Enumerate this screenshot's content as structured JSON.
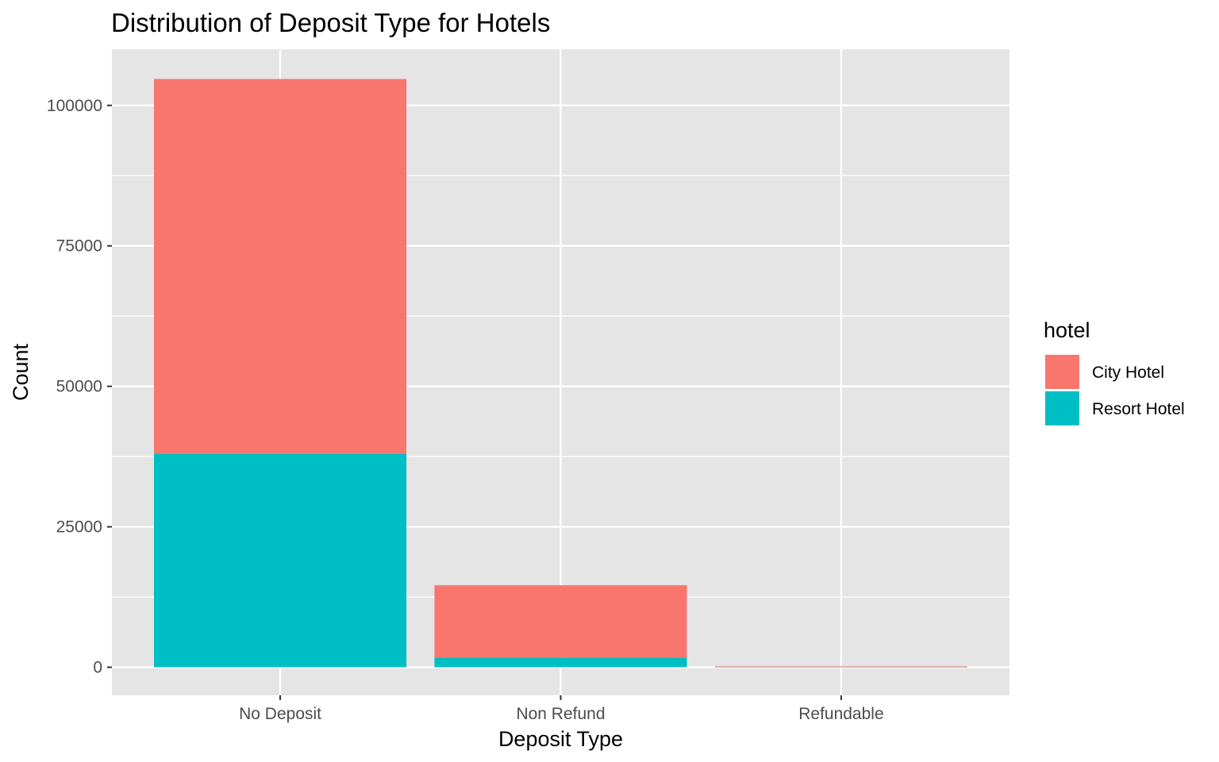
{
  "chart_data": {
    "type": "bar",
    "stacked": true,
    "title": "Distribution of Deposit Type for Hotels",
    "xlabel": "Deposit Type",
    "ylabel": "Count",
    "categories": [
      "No Deposit",
      "Non Refund",
      "Refundable"
    ],
    "series": [
      {
        "name": "City Hotel",
        "color": "#F8766D",
        "values": [
          66700,
          12900,
          20
        ]
      },
      {
        "name": "Resort Hotel",
        "color": "#00BFC4",
        "values": [
          38000,
          1700,
          140
        ]
      }
    ],
    "stack_order": [
      "Resort Hotel",
      "City Hotel"
    ],
    "ylim": [
      -5000,
      110000
    ],
    "yticks": [
      0,
      25000,
      50000,
      75000,
      100000
    ],
    "ytick_labels": [
      "0",
      "25000",
      "50000",
      "75000",
      "100000"
    ],
    "grid": true,
    "panel_background": "#E5E5E5",
    "legend": {
      "title": "hotel",
      "position": "right"
    }
  }
}
